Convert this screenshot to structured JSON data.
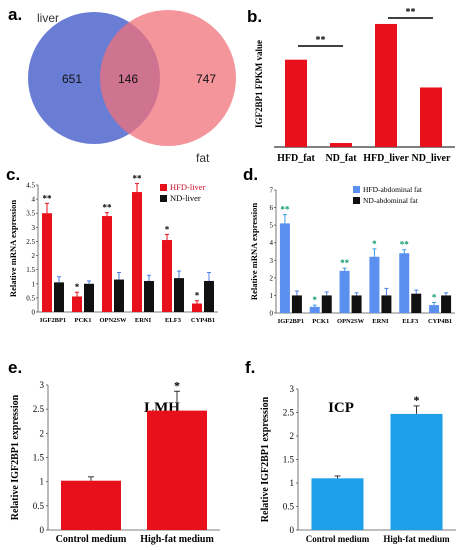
{
  "chart_data": [
    {
      "panel": "a.",
      "type": "venn",
      "sets": [
        {
          "label": "liver",
          "only": 651,
          "color": "#5a6fcf"
        },
        {
          "label": "fat",
          "only": 747,
          "color": "#f0707a"
        }
      ],
      "intersection": 146
    },
    {
      "panel": "b.",
      "type": "bar",
      "ylabel": "IGF2BP1 FPKM value",
      "categories": [
        "HFD_fat",
        "ND_fat",
        "HFD_liver",
        "ND_liver"
      ],
      "values": [
        44,
        2,
        62,
        30
      ],
      "ylim": [
        0,
        65
      ],
      "colors": [
        "#e8101a",
        "#e8101a",
        "#e8101a",
        "#e8101a"
      ],
      "significance": [
        {
          "pair": [
            0,
            1
          ],
          "label": "**"
        },
        {
          "pair": [
            2,
            3
          ],
          "label": "**"
        }
      ]
    },
    {
      "panel": "c.",
      "type": "bar",
      "ylabel": "Relative mRNA expression",
      "categories": [
        "IGF2BP1",
        "PCK1",
        "OPN2SW",
        "ERNI",
        "ELF3",
        "CYP4B1"
      ],
      "ylim": [
        0,
        4.5
      ],
      "yticks": [
        "0",
        "0.5",
        "1",
        "1.5",
        "2",
        "2.5",
        "3",
        "3.5",
        "4",
        "4.5"
      ],
      "series": [
        {
          "name": "HFD-liver",
          "values": [
            3.5,
            0.55,
            3.4,
            4.25,
            2.55,
            0.3
          ],
          "errors": [
            0.35,
            0.15,
            0.12,
            0.3,
            0.2,
            0.1
          ],
          "marks": [
            "**",
            "*",
            "**",
            "**",
            "*",
            "*"
          ],
          "color": "#e8101a"
        },
        {
          "name": "ND-liver",
          "values": [
            1.05,
            1.0,
            1.15,
            1.1,
            1.2,
            1.1
          ],
          "errors": [
            0.2,
            0.1,
            0.25,
            0.2,
            0.25,
            0.3
          ],
          "color": "#111111"
        }
      ]
    },
    {
      "panel": "d.",
      "type": "bar",
      "ylabel": "Relative mRNA expression",
      "categories": [
        "IGF2BP1",
        "PCK1",
        "OPN2SW",
        "ERNI",
        "ELF3",
        "CYP4B1"
      ],
      "ylim": [
        0,
        7
      ],
      "yticks": [
        "0",
        "1",
        "2",
        "3",
        "4",
        "5",
        "6",
        "7"
      ],
      "series": [
        {
          "name": "HFD-abdominal fat",
          "values": [
            5.1,
            0.35,
            2.4,
            3.2,
            3.4,
            0.45
          ],
          "errors": [
            0.5,
            0.1,
            0.15,
            0.45,
            0.2,
            0.15
          ],
          "marks": [
            "**",
            "*",
            "**",
            "*",
            "**",
            "*"
          ],
          "color": "#5b8ff0"
        },
        {
          "name": "ND-abdominal fat",
          "values": [
            1.0,
            1.0,
            1.0,
            1.0,
            1.1,
            1.0
          ],
          "errors": [
            0.25,
            0.2,
            0.15,
            0.4,
            0.2,
            0.15
          ],
          "color": "#111111"
        }
      ]
    },
    {
      "panel": "e.",
      "type": "bar",
      "title": "LMH",
      "ylabel": "Relative IGF2BP1 expression",
      "categories": [
        "Control medium",
        "High-fat medium"
      ],
      "values": [
        1.02,
        2.47
      ],
      "errors": [
        0.08,
        0.4
      ],
      "marks": [
        "",
        "*"
      ],
      "ylim": [
        0,
        3
      ],
      "yticks": [
        "0",
        "0.5",
        "1",
        "1.5",
        "2",
        "2.5",
        "3"
      ],
      "color": "#e8101a"
    },
    {
      "panel": "f.",
      "type": "bar",
      "title": "ICP",
      "ylabel": "Relative IGF2BP1 expression",
      "categories": [
        "Control medium",
        "High-fat medium"
      ],
      "values": [
        1.1,
        2.47
      ],
      "errors": [
        0.05,
        0.17
      ],
      "marks": [
        "",
        "*"
      ],
      "ylim": [
        0,
        3
      ],
      "yticks": [
        "0",
        "0.5",
        "1",
        "1.5",
        "2",
        "2.5",
        "3"
      ],
      "color": "#1ea0e8"
    }
  ]
}
